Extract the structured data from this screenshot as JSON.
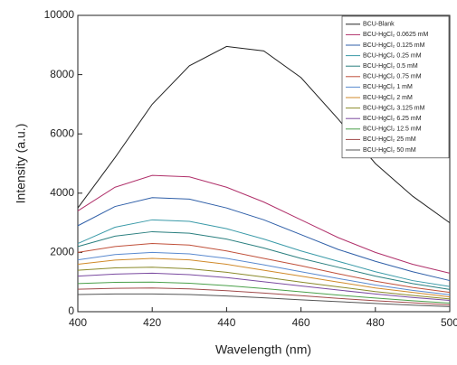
{
  "chart_data": {
    "type": "line",
    "xlabel": "Wavelength (nm)",
    "ylabel": "Intensity (a.u.)",
    "x": [
      400,
      410,
      420,
      430,
      440,
      450,
      460,
      470,
      480,
      490,
      500
    ],
    "xlim": [
      400,
      500
    ],
    "xticks": [
      400,
      420,
      440,
      460,
      480,
      500
    ],
    "ylim": [
      0,
      10000
    ],
    "yticks": [
      0,
      2000,
      4000,
      6000,
      8000,
      10000
    ],
    "legend": "upper right",
    "series": [
      {
        "name": "BCU-Blank",
        "color": "#222222",
        "values": [
          3500,
          5200,
          7000,
          8300,
          8950,
          8800,
          7900,
          6500,
          5000,
          3900,
          3000
        ]
      },
      {
        "name": "BCU-HgCl₂ 0.0625 mM",
        "color": "#b0306a",
        "values": [
          3400,
          4200,
          4600,
          4550,
          4200,
          3700,
          3100,
          2500,
          2000,
          1600,
          1300
        ]
      },
      {
        "name": "BCU-HgCl₂ 0.125 mM",
        "color": "#2f5fa8",
        "values": [
          2900,
          3550,
          3850,
          3800,
          3500,
          3100,
          2600,
          2100,
          1700,
          1350,
          1050
        ]
      },
      {
        "name": "BCU-HgCl₂ 0.25 mM",
        "color": "#3a9aa8",
        "values": [
          2300,
          2850,
          3100,
          3050,
          2800,
          2450,
          2050,
          1700,
          1350,
          1050,
          850
        ]
      },
      {
        "name": "BCU-HgCl₂ 0.5 mM",
        "color": "#2a7f7f",
        "values": [
          2200,
          2550,
          2700,
          2650,
          2450,
          2150,
          1800,
          1500,
          1200,
          950,
          750
        ]
      },
      {
        "name": "BCU-HgCl₂ 0.75 mM",
        "color": "#c0503a",
        "values": [
          2000,
          2200,
          2300,
          2250,
          2050,
          1800,
          1550,
          1280,
          1030,
          820,
          650
        ]
      },
      {
        "name": "BCU-HgCl₂ 1 mM",
        "color": "#5a8ad0",
        "values": [
          1750,
          1930,
          2000,
          1950,
          1800,
          1580,
          1350,
          1120,
          900,
          720,
          570
        ]
      },
      {
        "name": "BCU-HgCl₂ 2 mM",
        "color": "#d08a2a",
        "values": [
          1600,
          1740,
          1800,
          1750,
          1600,
          1400,
          1200,
          1000,
          800,
          650,
          500
        ]
      },
      {
        "name": "BCU-HgCl₂ 3.125 mM",
        "color": "#8a8a2a",
        "values": [
          1400,
          1480,
          1500,
          1450,
          1330,
          1170,
          1000,
          840,
          680,
          550,
          430
        ]
      },
      {
        "name": "BCU-HgCl₂ 6.25 mM",
        "color": "#7a4aa0",
        "values": [
          1200,
          1270,
          1300,
          1250,
          1150,
          1010,
          870,
          730,
          600,
          480,
          380
        ]
      },
      {
        "name": "BCU-HgCl₂ 12.5 mM",
        "color": "#4aa04a",
        "values": [
          950,
          990,
          1000,
          960,
          880,
          780,
          670,
          560,
          460,
          370,
          290
        ]
      },
      {
        "name": "BCU-HgCl₂ 25 mM",
        "color": "#a04a4a",
        "values": [
          760,
          790,
          800,
          770,
          710,
          630,
          540,
          450,
          370,
          300,
          230
        ]
      },
      {
        "name": "BCU-HgCl₂ 50 mM",
        "color": "#555555",
        "values": [
          580,
          600,
          600,
          580,
          530,
          470,
          400,
          340,
          280,
          220,
          170
        ]
      }
    ]
  }
}
